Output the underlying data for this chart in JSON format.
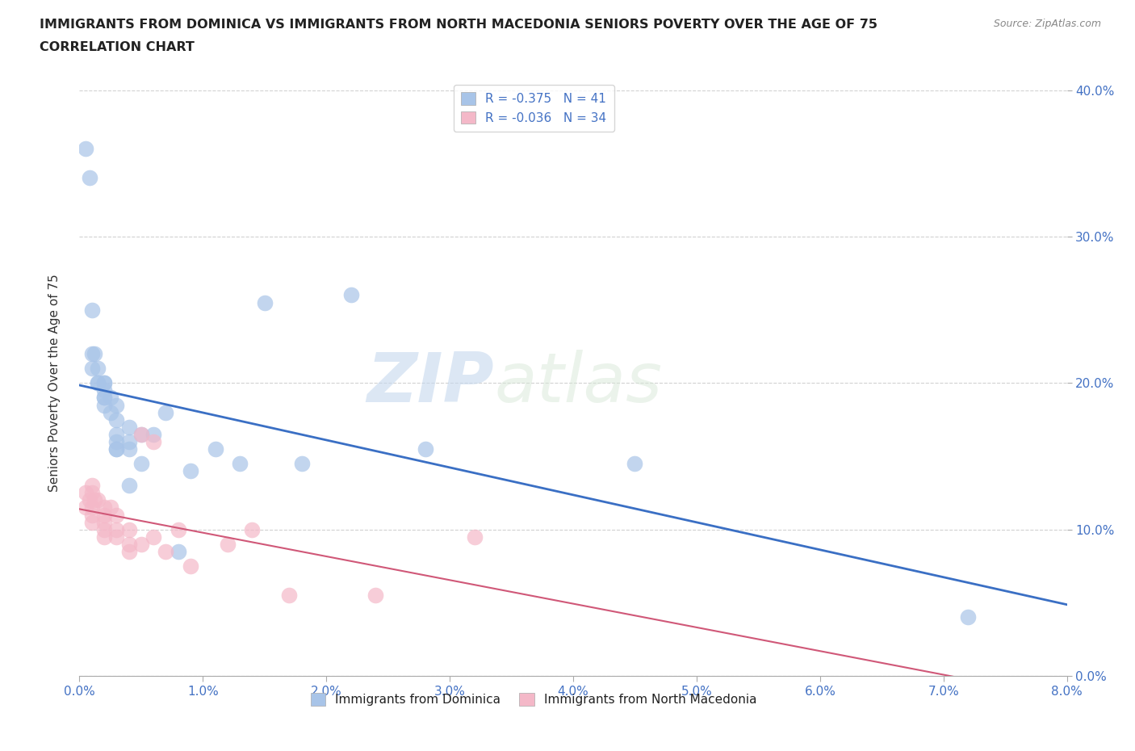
{
  "title_line1": "IMMIGRANTS FROM DOMINICA VS IMMIGRANTS FROM NORTH MACEDONIA SENIORS POVERTY OVER THE AGE OF 75",
  "title_line2": "CORRELATION CHART",
  "source": "Source: ZipAtlas.com",
  "ylabel": "Seniors Poverty Over the Age of 75",
  "legend_label1": "Immigrants from Dominica",
  "legend_label2": "Immigrants from North Macedonia",
  "R1": -0.375,
  "N1": 41,
  "R2": -0.036,
  "N2": 34,
  "color1": "#a8c4e8",
  "color2": "#f4b8c8",
  "line_color1": "#3a6fc4",
  "line_color2": "#d05878",
  "watermark_zip": "ZIP",
  "watermark_atlas": "atlas",
  "xmin": 0.0,
  "xmax": 0.08,
  "ymin": 0.0,
  "ymax": 0.4,
  "xticks": [
    0.0,
    0.01,
    0.02,
    0.03,
    0.04,
    0.05,
    0.06,
    0.07,
    0.08
  ],
  "yticks": [
    0.0,
    0.1,
    0.2,
    0.3,
    0.4
  ],
  "dominica_x": [
    0.0005,
    0.0008,
    0.001,
    0.001,
    0.001,
    0.0012,
    0.0015,
    0.0015,
    0.0015,
    0.002,
    0.002,
    0.002,
    0.002,
    0.002,
    0.002,
    0.0025,
    0.0025,
    0.003,
    0.003,
    0.003,
    0.003,
    0.003,
    0.003,
    0.004,
    0.004,
    0.004,
    0.004,
    0.005,
    0.005,
    0.006,
    0.007,
    0.008,
    0.009,
    0.011,
    0.013,
    0.015,
    0.018,
    0.022,
    0.028,
    0.045,
    0.072
  ],
  "dominica_y": [
    0.36,
    0.34,
    0.25,
    0.22,
    0.21,
    0.22,
    0.21,
    0.2,
    0.2,
    0.2,
    0.2,
    0.195,
    0.19,
    0.19,
    0.185,
    0.19,
    0.18,
    0.185,
    0.175,
    0.165,
    0.16,
    0.155,
    0.155,
    0.17,
    0.16,
    0.155,
    0.13,
    0.165,
    0.145,
    0.165,
    0.18,
    0.085,
    0.14,
    0.155,
    0.145,
    0.255,
    0.145,
    0.26,
    0.155,
    0.145,
    0.04
  ],
  "macedonia_x": [
    0.0005,
    0.0005,
    0.0008,
    0.001,
    0.001,
    0.001,
    0.001,
    0.001,
    0.0012,
    0.0015,
    0.002,
    0.002,
    0.002,
    0.002,
    0.002,
    0.0025,
    0.003,
    0.003,
    0.003,
    0.004,
    0.004,
    0.004,
    0.005,
    0.005,
    0.006,
    0.006,
    0.007,
    0.008,
    0.009,
    0.012,
    0.014,
    0.017,
    0.024,
    0.032
  ],
  "macedonia_y": [
    0.125,
    0.115,
    0.12,
    0.13,
    0.125,
    0.115,
    0.11,
    0.105,
    0.12,
    0.12,
    0.115,
    0.11,
    0.105,
    0.1,
    0.095,
    0.115,
    0.11,
    0.1,
    0.095,
    0.1,
    0.09,
    0.085,
    0.165,
    0.09,
    0.16,
    0.095,
    0.085,
    0.1,
    0.075,
    0.09,
    0.1,
    0.055,
    0.055,
    0.095
  ]
}
